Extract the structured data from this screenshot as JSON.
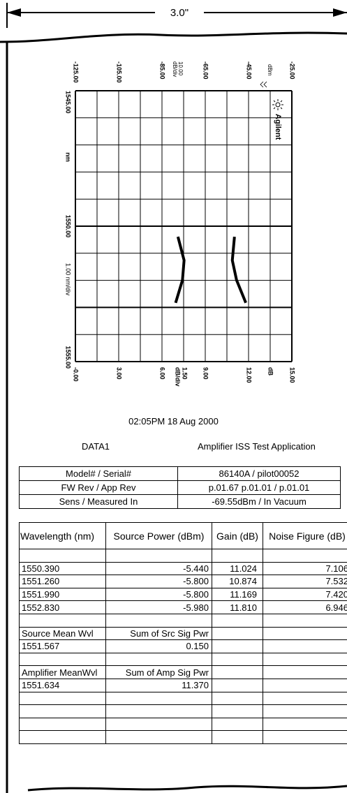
{
  "header": {
    "width_label": "3.0\""
  },
  "plot": {
    "top_ticks": [
      "-125.00",
      "-105.00",
      "-85.00",
      "-65.00",
      "-45.00",
      "-25.00"
    ],
    "top_scale": [
      "10.00",
      "dB/div"
    ],
    "top_unit": "dBm",
    "bottom_ticks": [
      "-0.00",
      "3.00",
      "6.00",
      "9.00",
      "12.00",
      "15.00"
    ],
    "bottom_scale": [
      "dB/div",
      "1.50"
    ],
    "bottom_unit": "dB",
    "left_ticks": [
      "1545.00",
      "1550.00",
      "1555.00"
    ],
    "left_unit": "nm",
    "left_scale": "1.00 nm/div",
    "logo": "Agilent"
  },
  "timestamp": "02:05PM 18 Aug 2000",
  "data_name": "DATA1",
  "application": "Amplifier ISS Test Application",
  "info_table": {
    "rows": [
      [
        "Model# / Serial#",
        "86140A / pilot00052"
      ],
      [
        "FW Rev / App Rev",
        "p.01.67 p.01.01 / p.01.01"
      ],
      [
        "Sens / Measured In",
        "-69.55dBm / In Vacuum"
      ]
    ]
  },
  "table": {
    "header": [
      "Wavelength (nm)",
      "Source Power (dBm)",
      "Gain (dB)",
      "Noise Figure (dB)"
    ],
    "rows": [
      [],
      [
        "1550.390",
        "-5.440",
        "11.024",
        "7.106"
      ],
      [
        "1551.260",
        "-5.800",
        "10.874",
        "7.532"
      ],
      [
        "1551.990",
        "-5.800",
        "11.169",
        "7.420"
      ],
      [
        "1552.830",
        "-5.980",
        "11.810",
        "6.946"
      ],
      [],
      [
        "Source Mean Wvl",
        "Sum of Src Sig Pwr"
      ],
      [
        "1551.567",
        "0.150"
      ],
      [],
      [
        "Amplifier MeanWvl",
        "Sum of Amp Sig Pwr"
      ],
      [
        "1551.634",
        "11.370"
      ],
      [],
      [],
      [],
      []
    ]
  }
}
